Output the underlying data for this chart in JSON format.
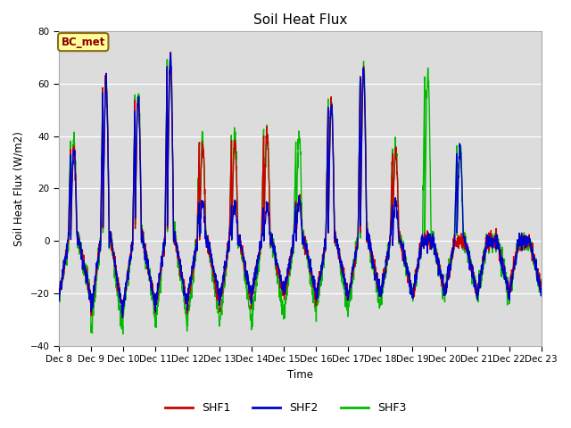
{
  "title": "Soil Heat Flux",
  "xlabel": "Time",
  "ylabel": "Soil Heat Flux (W/m2)",
  "ylim": [
    -40,
    80
  ],
  "yticks": [
    -40,
    -20,
    0,
    20,
    40,
    60,
    80
  ],
  "background_color": "#dcdcdc",
  "figure_color": "#ffffff",
  "annotation_text": "BC_met",
  "annotation_bbox": {
    "boxstyle": "round,pad=0.3",
    "facecolor": "#ffff99",
    "edgecolor": "#8b6914"
  },
  "line_colors": {
    "SHF1": "#cc0000",
    "SHF2": "#0000cc",
    "SHF3": "#00bb00"
  },
  "line_width": 1.0,
  "start_day": 8,
  "num_days": 15,
  "points_per_day": 144,
  "shf1_daily_peaks": [
    35,
    60,
    55,
    70,
    37,
    38,
    41,
    16,
    52,
    65,
    34,
    0,
    0,
    0,
    0
  ],
  "shf2_daily_peaks": [
    35,
    60,
    55,
    70,
    15,
    13,
    13,
    16,
    52,
    65,
    14,
    0,
    35,
    0,
    0
  ],
  "shf3_daily_peaks": [
    39,
    61,
    56,
    71,
    38,
    40,
    42,
    41,
    53,
    66,
    36,
    65,
    36,
    0,
    0
  ],
  "shf1_nightly_troughs": [
    -22,
    -28,
    -25,
    -25,
    -25,
    -25,
    -22,
    -22,
    -22,
    -21,
    -21,
    -20,
    -20,
    -20,
    -18
  ],
  "shf2_nightly_troughs": [
    -22,
    -28,
    -25,
    -25,
    -22,
    -22,
    -20,
    -20,
    -22,
    -21,
    -21,
    -20,
    -20,
    -21,
    -20
  ],
  "shf3_nightly_troughs": [
    -22,
    -35,
    -28,
    -32,
    -30,
    -32,
    -30,
    -28,
    -28,
    -25,
    -22,
    -20,
    -20,
    -21,
    -20
  ],
  "figsize": [
    6.4,
    4.8
  ],
  "dpi": 100
}
